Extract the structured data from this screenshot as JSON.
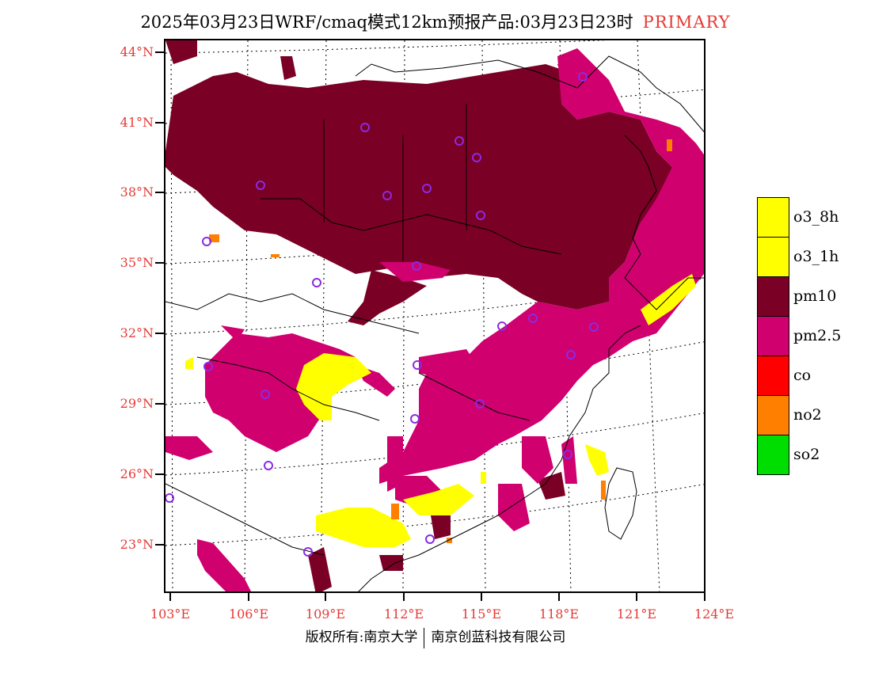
{
  "header": {
    "title": "2025年03月23日WRF/cmaq模式12km预报产品:03月23日23时",
    "tag": "PRIMARY"
  },
  "axes": {
    "lat_labels": [
      "44°N",
      "41°N",
      "38°N",
      "35°N",
      "32°N",
      "29°N",
      "26°N",
      "23°N"
    ],
    "lon_labels": [
      "103°E",
      "106°E",
      "109°E",
      "112°E",
      "115°E",
      "118°E",
      "121°E",
      "124°E"
    ]
  },
  "legend": {
    "items": [
      {
        "label": "o3_8h",
        "color": "#ffff00"
      },
      {
        "label": "o3_1h",
        "color": "#ffff00"
      },
      {
        "label": "pm10",
        "color": "#7a0026"
      },
      {
        "label": "pm2.5",
        "color": "#d0006f"
      },
      {
        "label": "co",
        "color": "#ff0000"
      },
      {
        "label": "no2",
        "color": "#ff7f00"
      },
      {
        "label": "so2",
        "color": "#00dd00"
      }
    ]
  },
  "credit": {
    "left": "版权所有:南京大学",
    "right": "南京创蓝科技有限公司"
  },
  "colors": {
    "axis_label": "#e53935",
    "pm10": "#7a0026",
    "pm25": "#d0006f",
    "o3": "#ffff00",
    "no2": "#ff7f00",
    "station": "#8a2be2"
  }
}
